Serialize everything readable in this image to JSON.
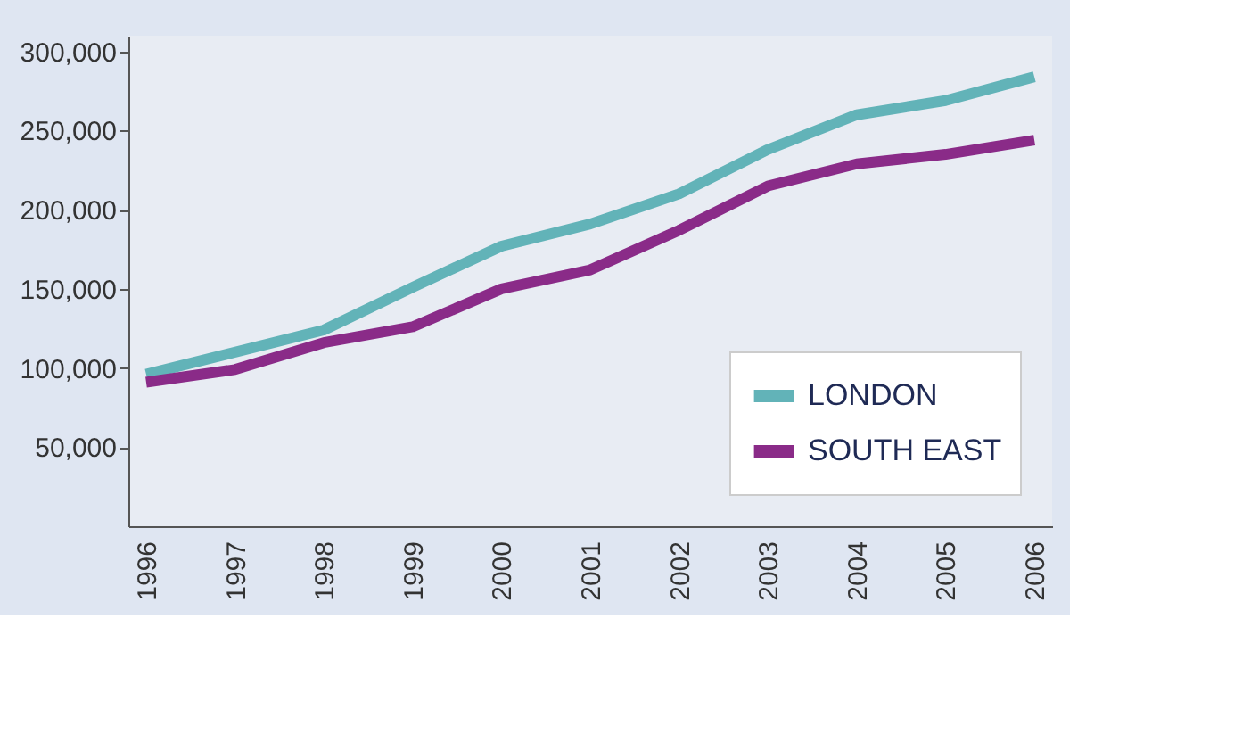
{
  "chart_data": {
    "type": "line",
    "categories": [
      "1996",
      "1997",
      "1998",
      "1999",
      "2000",
      "2001",
      "2002",
      "2003",
      "2004",
      "2005",
      "2006"
    ],
    "series": [
      {
        "name": "LONDON",
        "color": "#62b3b8",
        "values": [
          96000,
          110000,
          124000,
          151000,
          177000,
          191000,
          210000,
          238000,
          260000,
          269000,
          284000
        ]
      },
      {
        "name": "SOUTH EAST",
        "color": "#8a2b88",
        "values": [
          91000,
          99000,
          116000,
          126000,
          150000,
          162000,
          187000,
          215000,
          229000,
          235000,
          244000
        ]
      }
    ],
    "ylim": [
      0,
      310000
    ],
    "yticks": [
      {
        "value": 50000,
        "label": "50,000"
      },
      {
        "value": 100000,
        "label": "100,000"
      },
      {
        "value": 150000,
        "label": "150,000"
      },
      {
        "value": 200000,
        "label": "200,000"
      },
      {
        "value": 250000,
        "label": "250,000"
      },
      {
        "value": 300000,
        "label": "300,000"
      }
    ],
    "grid": false,
    "legend": "bottom right",
    "marker": "none",
    "line_style": "solid"
  }
}
